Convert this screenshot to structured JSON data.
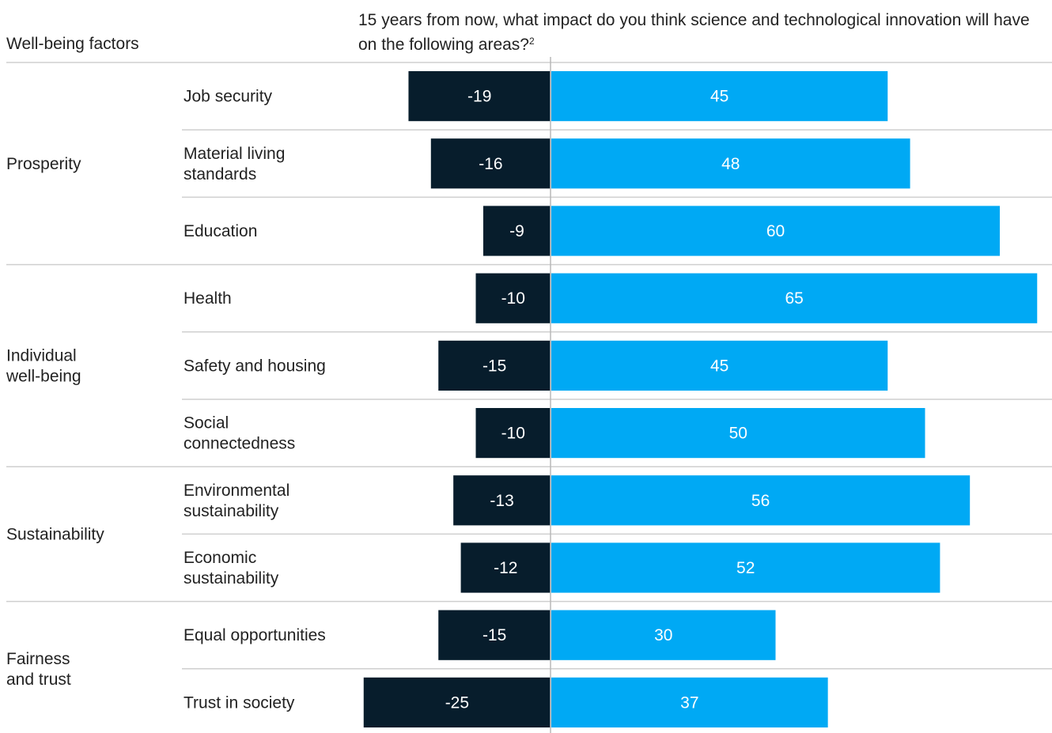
{
  "header": {
    "left_label": "Well-being factors",
    "question": "15 years from now, what impact do you think science and technological innovation will have on the following areas?",
    "footnote_mark": "2"
  },
  "colors": {
    "negative": "#071d2c",
    "positive": "#00a9f4",
    "divider": "#cfcfcf",
    "axis": "#b8b8b8"
  },
  "chart_data": {
    "type": "bar",
    "orientation": "horizontal-diverging",
    "groups": [
      {
        "label": [
          "Prosperity"
        ],
        "categories": [
          {
            "label": [
              "Job security"
            ],
            "negative": -19,
            "positive": 45
          },
          {
            "label": [
              "Material living",
              "standards"
            ],
            "negative": -16,
            "positive": 48
          },
          {
            "label": [
              "Education"
            ],
            "negative": -9,
            "positive": 60
          }
        ]
      },
      {
        "label": [
          "Individual",
          "well-being"
        ],
        "categories": [
          {
            "label": [
              "Health"
            ],
            "negative": -10,
            "positive": 65
          },
          {
            "label": [
              "Safety and housing"
            ],
            "negative": -15,
            "positive": 45
          },
          {
            "label": [
              "Social",
              "connectedness"
            ],
            "negative": -10,
            "positive": 50
          }
        ]
      },
      {
        "label": [
          "Sustainability"
        ],
        "categories": [
          {
            "label": [
              "Environmental",
              "sustainability"
            ],
            "negative": -13,
            "positive": 56
          },
          {
            "label": [
              "Economic",
              "sustainability"
            ],
            "negative": -12,
            "positive": 52
          }
        ]
      },
      {
        "label": [
          "Fairness",
          "and trust"
        ],
        "categories": [
          {
            "label": [
              "Equal opportunities"
            ],
            "negative": -15,
            "positive": 30
          },
          {
            "label": [
              "Trust in society"
            ],
            "negative": -25,
            "positive": 37
          }
        ]
      }
    ]
  }
}
